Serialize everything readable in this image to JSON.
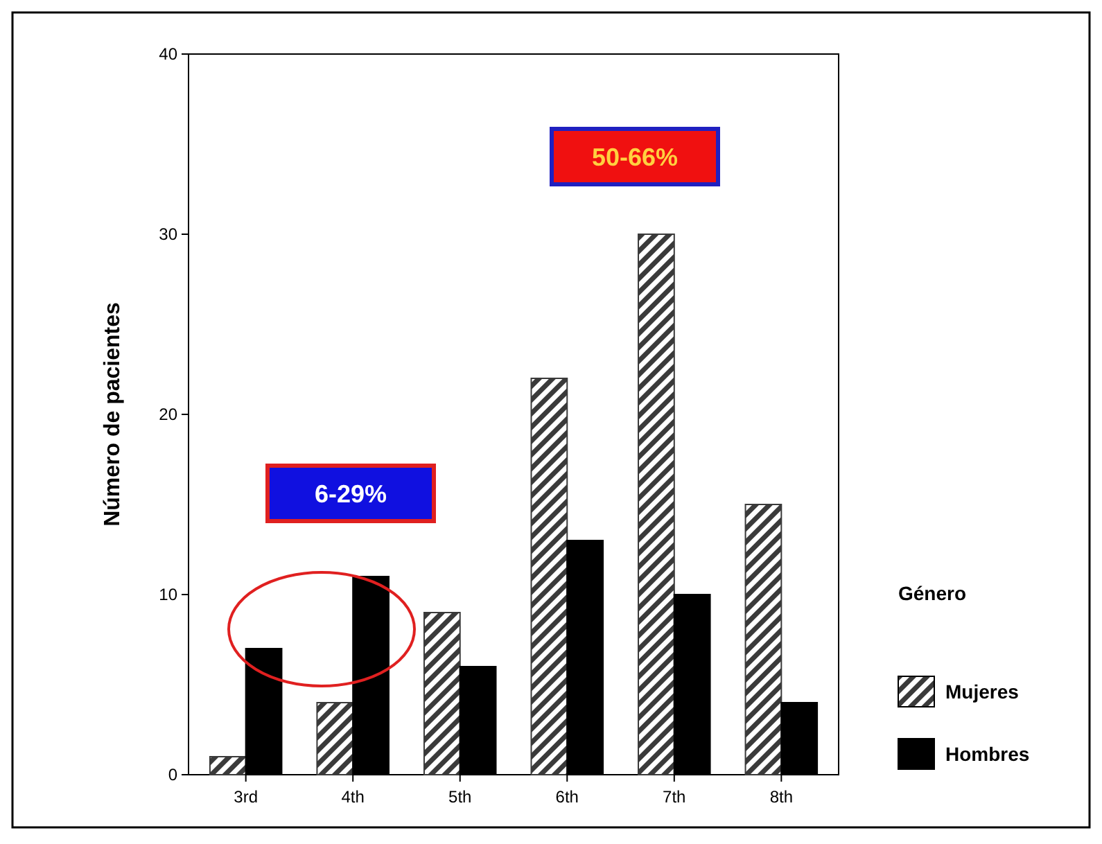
{
  "chart_data": {
    "type": "bar",
    "ylabel": "Número de pacientes",
    "legend_title": "Género",
    "legend": "right",
    "categories": [
      "3rd",
      "4th",
      "5th",
      "6th",
      "7th",
      "8th"
    ],
    "ylim": [
      0,
      40
    ],
    "yticks": [
      0,
      10,
      20,
      30,
      40
    ],
    "series": [
      {
        "name": "Mujeres",
        "color": "#3a3a3a",
        "values": [
          1,
          4,
          9,
          22,
          30,
          15
        ]
      },
      {
        "name": "Hombres",
        "color": "#000000",
        "values": [
          7,
          11,
          6,
          13,
          10,
          4
        ]
      }
    ],
    "annotations": [
      "6-29%",
      "50-66%"
    ]
  }
}
